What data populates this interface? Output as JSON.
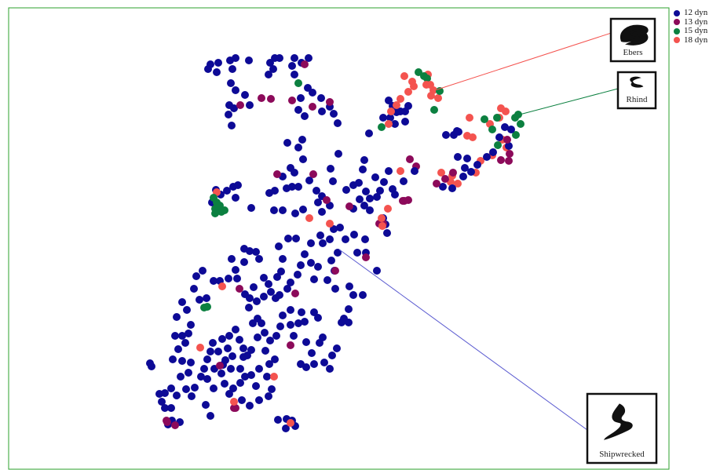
{
  "chart_data": {
    "type": "scatter",
    "title": "",
    "xlabel": "",
    "ylabel": "",
    "grid": false,
    "legend_position": "top-right, outside plot",
    "series": [
      {
        "name": "12 dyn",
        "color": "#0d0a96"
      },
      {
        "name": "13 dyn",
        "color": "#8c0a5a"
      },
      {
        "name": "15 dyn",
        "color": "#0c8040"
      },
      {
        "name": "18 dyn",
        "color": "#f4534f"
      }
    ],
    "callouts": [
      {
        "label": "Ebers",
        "line_color": "#f4534f",
        "glyph": "ebers-glyph"
      },
      {
        "label": "Rhind",
        "line_color": "#0c8040",
        "glyph": "rhind-glyph"
      },
      {
        "label": "Shipwrecked",
        "line_color": "#5a5ad0",
        "glyph": "shipwrecked-glyph"
      }
    ],
    "frame_color": "#2ca02c"
  }
}
